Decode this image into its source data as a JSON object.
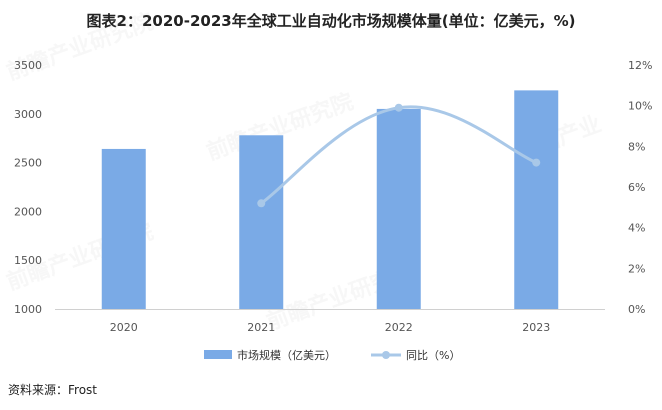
{
  "title": "图表2：2020-2023年全球工业自动化市场规模体量(单位：亿美元，%)",
  "source": "资料来源：Frost",
  "colors": {
    "bar": "#7aaae6",
    "line": "#a9c8e8",
    "axis_text": "#555555"
  },
  "chart_data": {
    "type": "bar",
    "categories": [
      "2020",
      "2021",
      "2022",
      "2023"
    ],
    "series": [
      {
        "name": "市场规模（亿美元）",
        "type": "bar",
        "axis": "left",
        "values": [
          2640,
          2780,
          3050,
          3240
        ]
      },
      {
        "name": "同比（%）",
        "type": "line",
        "axis": "right",
        "values": [
          null,
          5.2,
          9.9,
          7.2
        ]
      }
    ],
    "y_left": {
      "lim": [
        1000,
        3500
      ],
      "ticks": [
        "1000",
        "1500",
        "2000",
        "2500",
        "3000",
        "3500"
      ]
    },
    "y_right": {
      "lim": [
        0,
        12
      ],
      "ticks": [
        "0%",
        "2%",
        "4%",
        "6%",
        "8%",
        "10%",
        "12%"
      ]
    },
    "grid": false,
    "legend_position": "bottom"
  }
}
